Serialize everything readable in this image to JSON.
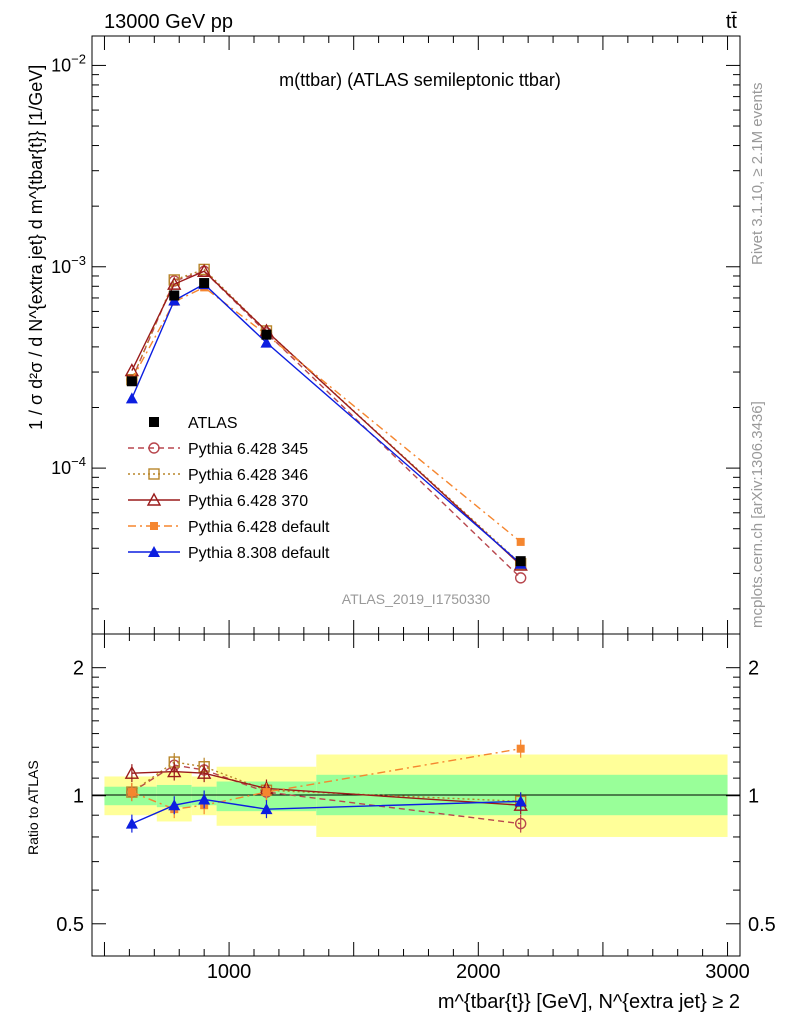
{
  "header": {
    "process": "13000 GeV pp",
    "process_short": "tt̄"
  },
  "side": {
    "rivet": "Rivet 3.1.10, ≥ 2.1M events",
    "mcplots": "mcplots.cern.ch [arXiv:1306.3436]"
  },
  "chart_data": [
    {
      "type": "line",
      "title": "m(ttbar) (ATLAS semileptonic ttbar)",
      "watermark": "ATLAS_2019_I1750330",
      "ylabel": "1 / σ d²σ / d N^{extra jet} d m^{tbar{t}} [1/GeV]",
      "yscale": "log",
      "ylim": [
        1.5e-05,
        0.014
      ],
      "xlim": [
        450,
        3050
      ],
      "ytick_labels": [
        "10^{-2}",
        "10^{-3}",
        "10^{-4}"
      ],
      "x": [
        610,
        780,
        900,
        1150,
        2170
      ],
      "series": [
        {
          "name": "ATLAS",
          "color": "#000000",
          "marker": "filled-square",
          "values": [
            0.00027,
            0.00072,
            0.00083,
            0.00046,
            3.45e-05
          ],
          "errors": [
            1.2e-05,
            3e-05,
            3e-05,
            1.5e-05,
            1.5e-06
          ]
        },
        {
          "name": "Pythia 6.428 345",
          "color": "#b8474e",
          "marker": "open-circle",
          "dash": "dashed",
          "values": [
            0.000275,
            0.00085,
            0.00095,
            0.00047,
            2.85e-05
          ]
        },
        {
          "name": "Pythia 6.428 346",
          "color": "#b8862a",
          "marker": "open-square",
          "dash": "dotted",
          "values": [
            0.000275,
            0.00086,
            0.00097,
            0.00048,
            3.35e-05
          ]
        },
        {
          "name": "Pythia 6.428 370",
          "color": "#9a1b1b",
          "marker": "open-triangle",
          "dash": "solid",
          "values": [
            0.000305,
            0.00082,
            0.00095,
            0.00048,
            3.3e-05
          ]
        },
        {
          "name": "Pythia 6.428 default",
          "color": "#f5862f",
          "marker": "filled-square-small",
          "dash": "dashdot",
          "values": [
            0.000275,
            0.00067,
            0.00079,
            0.00046,
            4.3e-05
          ]
        },
        {
          "name": "Pythia 8.308 default",
          "color": "#0c1ee0",
          "marker": "filled-triangle",
          "dash": "solid",
          "values": [
            0.000222,
            0.00068,
            0.00082,
            0.00042,
            3.35e-05
          ]
        }
      ]
    },
    {
      "type": "line",
      "ylabel": "Ratio to ATLAS",
      "xlabel": "m^{tbar{t}} [GeV], N^{extra jet} ≥ 2",
      "yscale": "log",
      "ylim": [
        0.42,
        2.4
      ],
      "xlim": [
        450,
        3050
      ],
      "ytick_labels": [
        "0.5",
        "1",
        "2"
      ],
      "xtick_labels": [
        "1000",
        "2000",
        "3000"
      ],
      "bins": [
        [
          500,
          710
        ],
        [
          710,
          850
        ],
        [
          850,
          950
        ],
        [
          950,
          1350
        ],
        [
          1350,
          3000
        ]
      ],
      "band_green": [
        [
          0.95,
          1.05
        ],
        [
          0.94,
          1.06
        ],
        [
          0.95,
          1.05
        ],
        [
          0.92,
          1.08
        ],
        [
          0.9,
          1.12
        ]
      ],
      "band_yellow": [
        [
          0.9,
          1.11
        ],
        [
          0.87,
          1.14
        ],
        [
          0.9,
          1.11
        ],
        [
          0.85,
          1.17
        ],
        [
          0.8,
          1.25
        ]
      ],
      "x": [
        610,
        780,
        900,
        1150,
        2170
      ],
      "series": [
        {
          "name": "Pythia 6.428 345",
          "values": [
            1.02,
            1.18,
            1.15,
            1.02,
            0.86
          ]
        },
        {
          "name": "Pythia 6.428 346",
          "values": [
            1.02,
            1.2,
            1.17,
            1.03,
            0.97
          ]
        },
        {
          "name": "Pythia 6.428 370",
          "values": [
            1.13,
            1.14,
            1.13,
            1.04,
            0.95
          ]
        },
        {
          "name": "Pythia 6.428 default",
          "values": [
            1.02,
            0.93,
            0.95,
            1.02,
            1.29
          ]
        },
        {
          "name": "Pythia 8.308 default",
          "values": [
            0.86,
            0.95,
            0.98,
            0.93,
            0.97
          ]
        }
      ]
    }
  ]
}
